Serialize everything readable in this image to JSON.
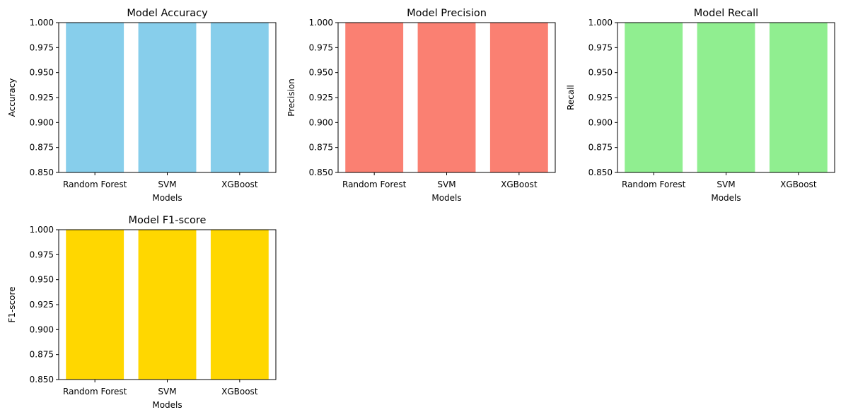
{
  "chart_data": [
    {
      "type": "bar",
      "title": "Model Accuracy",
      "xlabel": "Models",
      "ylabel": "Accuracy",
      "categories": [
        "Random Forest",
        "SVM",
        "XGBoost"
      ],
      "values": [
        1.0,
        1.0,
        1.0
      ],
      "ylim": [
        0.85,
        1.0
      ],
      "yticks": [
        "0.850",
        "0.875",
        "0.900",
        "0.925",
        "0.950",
        "0.975",
        "1.000"
      ],
      "color": "#87CEEB",
      "grid": false
    },
    {
      "type": "bar",
      "title": "Model Precision",
      "xlabel": "Models",
      "ylabel": "Precision",
      "categories": [
        "Random Forest",
        "SVM",
        "XGBoost"
      ],
      "values": [
        1.0,
        1.0,
        1.0
      ],
      "ylim": [
        0.85,
        1.0
      ],
      "yticks": [
        "0.850",
        "0.875",
        "0.900",
        "0.925",
        "0.950",
        "0.975",
        "1.000"
      ],
      "color": "#FA8072",
      "grid": false
    },
    {
      "type": "bar",
      "title": "Model Recall",
      "xlabel": "Models",
      "ylabel": "Recall",
      "categories": [
        "Random Forest",
        "SVM",
        "XGBoost"
      ],
      "values": [
        1.0,
        1.0,
        1.0
      ],
      "ylim": [
        0.85,
        1.0
      ],
      "yticks": [
        "0.850",
        "0.875",
        "0.900",
        "0.925",
        "0.950",
        "0.975",
        "1.000"
      ],
      "color": "#90EE90",
      "grid": false
    },
    {
      "type": "bar",
      "title": "Model F1-score",
      "xlabel": "Models",
      "ylabel": "F1-score",
      "categories": [
        "Random Forest",
        "SVM",
        "XGBoost"
      ],
      "values": [
        1.0,
        1.0,
        1.0
      ],
      "ylim": [
        0.85,
        1.0
      ],
      "yticks": [
        "0.850",
        "0.875",
        "0.900",
        "0.925",
        "0.950",
        "0.975",
        "1.000"
      ],
      "color": "#FFD700",
      "grid": false
    }
  ]
}
